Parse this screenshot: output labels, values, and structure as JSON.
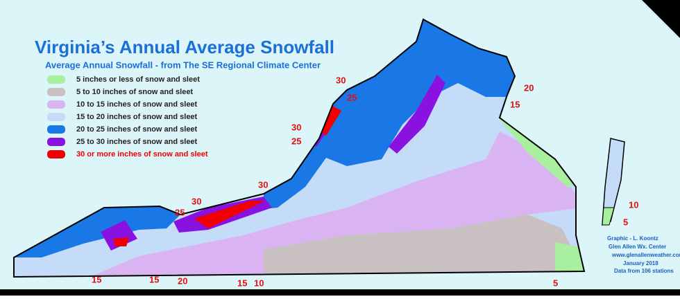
{
  "title": "Virginia’s  Annual Average Snowfall",
  "subtitle": "Average Annual Snowfall - from The SE Regional Climate Center",
  "legend": [
    {
      "label": "5 inches or less of snow and sleet",
      "color": "#a8f0a0"
    },
    {
      "label": "5 to 10 inches of snow and sleet",
      "color": "#c9c1c1"
    },
    {
      "label": "10 to 15 inches of snow and sleet",
      "color": "#dab4f2"
    },
    {
      "label": "15 to 20 inches of snow and sleet",
      "color": "#c4dcf8"
    },
    {
      "label": "20 to 25 inches of snow and sleet",
      "color": "#1a78e6"
    },
    {
      "label": "25 to 30 inches of snow and sleet",
      "color": "#8a12e0"
    },
    {
      "label": "30 or more inches of snow and sleet",
      "color": "#f00000"
    }
  ],
  "map_labels": [
    "30",
    "25",
    "20",
    "15",
    "30",
    "25",
    "30",
    "25",
    "30",
    "15",
    "15",
    "20",
    "15",
    "10",
    "5",
    "10",
    "5"
  ],
  "credits": [
    "Graphic - L. Koontz",
    "Glen Allen Wx. Center",
    "www.glenallenweather.com",
    "January 2018",
    "Data from 106 stations"
  ]
}
